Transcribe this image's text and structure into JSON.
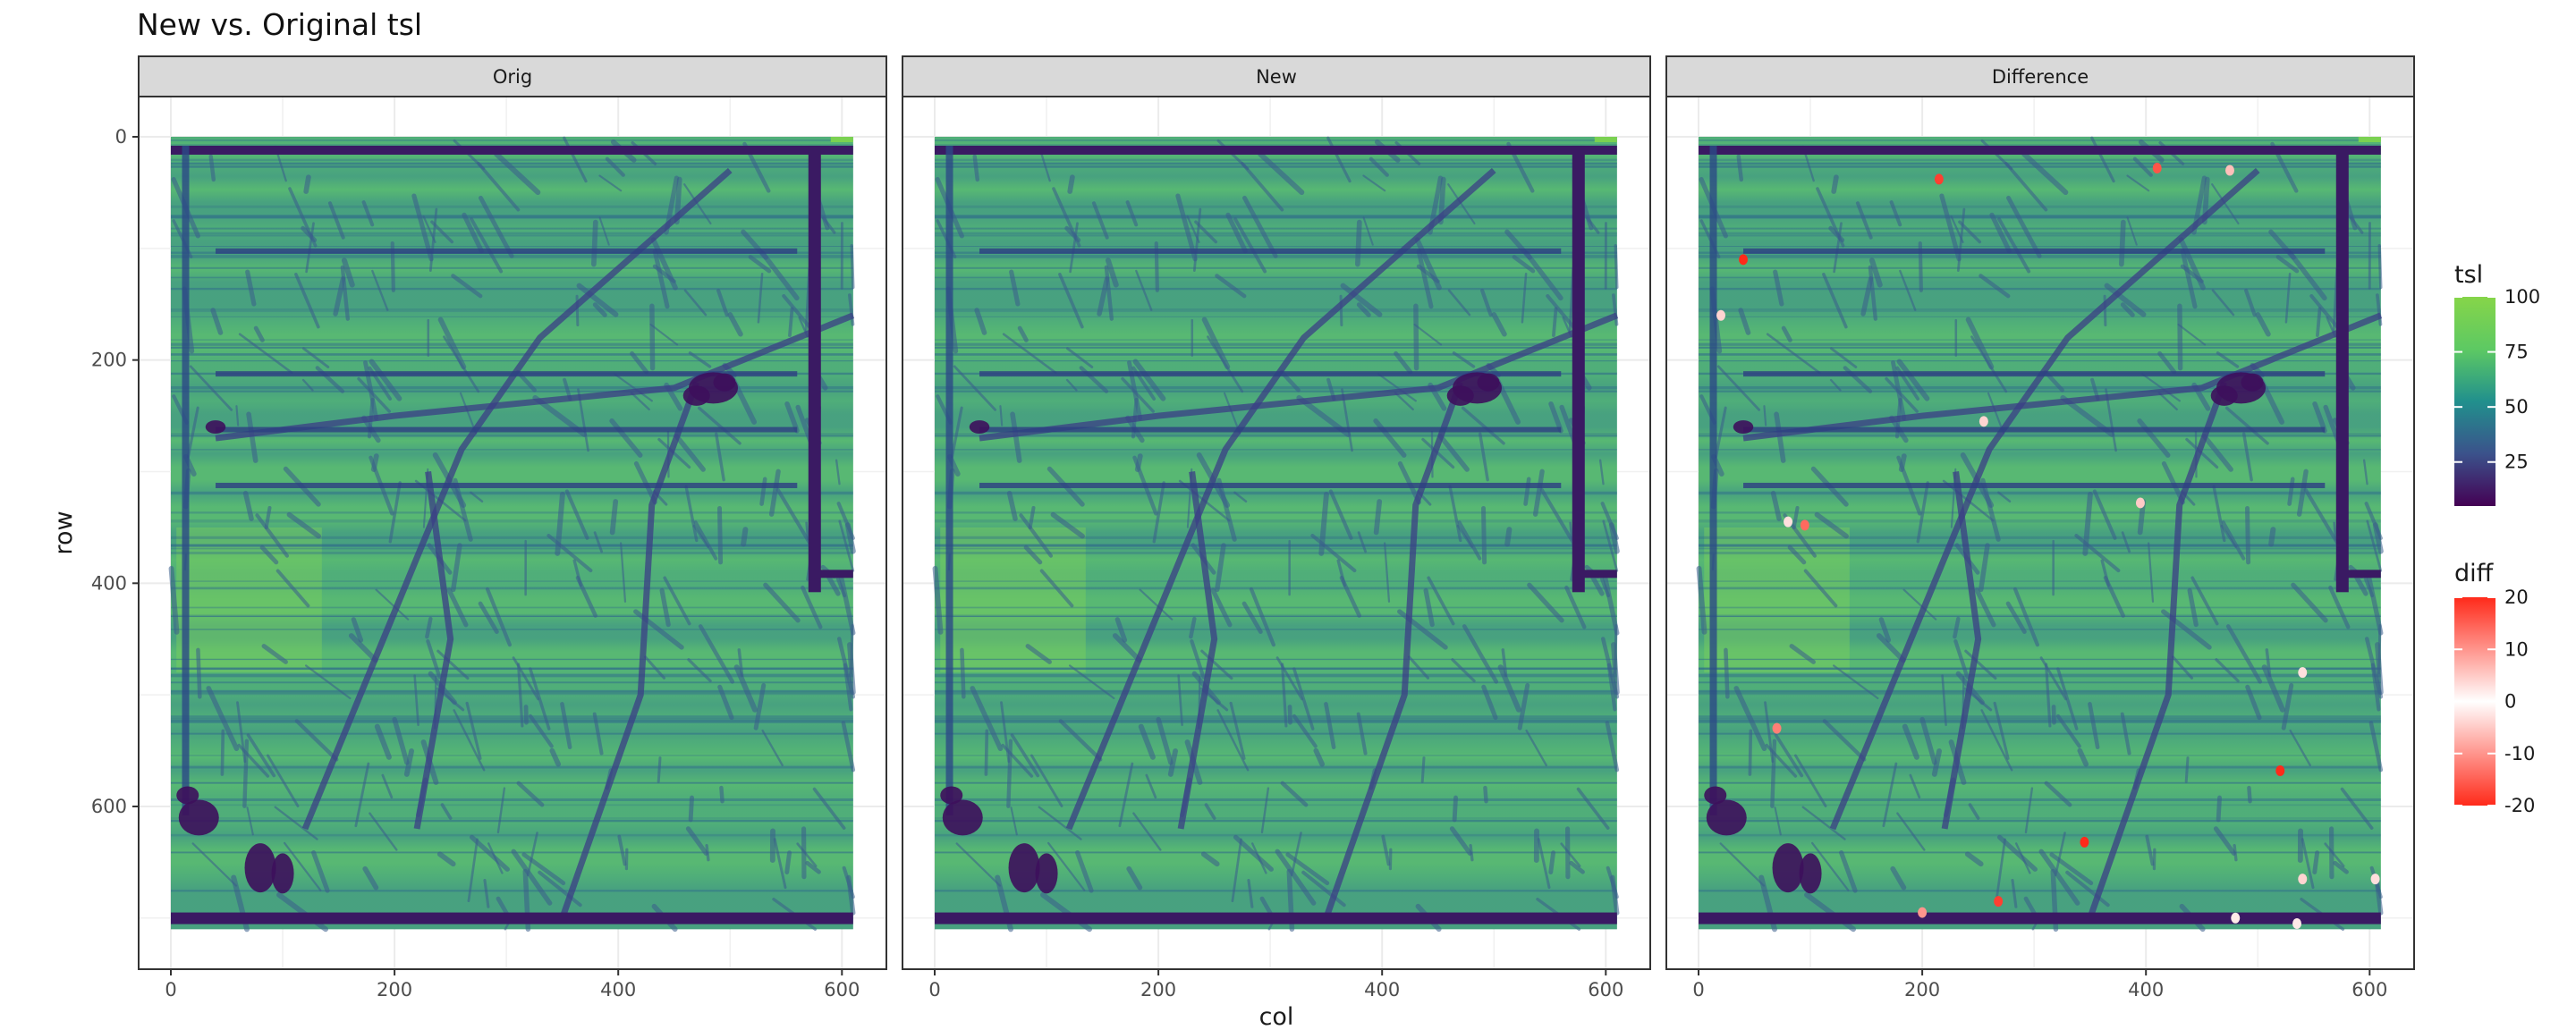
{
  "chart_data": {
    "type": "heatmap",
    "title": "New vs. Original tsl",
    "xlabel": "col",
    "ylabel": "row",
    "facets": [
      "Orig",
      "New",
      "Difference"
    ],
    "xlim": [
      0,
      612
    ],
    "ylim": [
      710,
      0
    ],
    "x_ticks": [
      0,
      200,
      400,
      600
    ],
    "y_ticks": [
      0,
      200,
      400,
      600
    ],
    "legend_tsl": {
      "title": "tsl",
      "range": [
        5,
        100
      ],
      "ticks": [
        100,
        75,
        50,
        25
      ],
      "colors": [
        "#440154",
        "#3b528b",
        "#21908d",
        "#5dc963",
        "#86d549"
      ]
    },
    "legend_diff": {
      "title": "diff",
      "range": [
        -20,
        20
      ],
      "ticks": [
        20,
        10,
        0,
        -10,
        -20
      ],
      "colors": [
        "#ff2a1a",
        "#ffffff",
        "#ff2a1a"
      ]
    },
    "diff_points": [
      {
        "col": 215,
        "row": 38,
        "diff": 18
      },
      {
        "col": 410,
        "row": 28,
        "diff": 16
      },
      {
        "col": 475,
        "row": 30,
        "diff": -6
      },
      {
        "col": 40,
        "row": 110,
        "diff": 20
      },
      {
        "col": 20,
        "row": 160,
        "diff": -4
      },
      {
        "col": 95,
        "row": 348,
        "diff": 14
      },
      {
        "col": 80,
        "row": 345,
        "diff": -3
      },
      {
        "col": 395,
        "row": 328,
        "diff": -5
      },
      {
        "col": 255,
        "row": 255,
        "diff": -4
      },
      {
        "col": 70,
        "row": 530,
        "diff": 12
      },
      {
        "col": 520,
        "row": 568,
        "diff": 20
      },
      {
        "col": 345,
        "row": 632,
        "diff": -20
      },
      {
        "col": 268,
        "row": 685,
        "diff": 18
      },
      {
        "col": 200,
        "row": 695,
        "diff": 10
      },
      {
        "col": 605,
        "row": 665,
        "diff": -3
      },
      {
        "col": 540,
        "row": 665,
        "diff": -4
      },
      {
        "col": 480,
        "row": 700,
        "diff": -2
      },
      {
        "col": 535,
        "row": 705,
        "diff": -2
      },
      {
        "col": 540,
        "row": 480,
        "diff": -3
      }
    ]
  }
}
